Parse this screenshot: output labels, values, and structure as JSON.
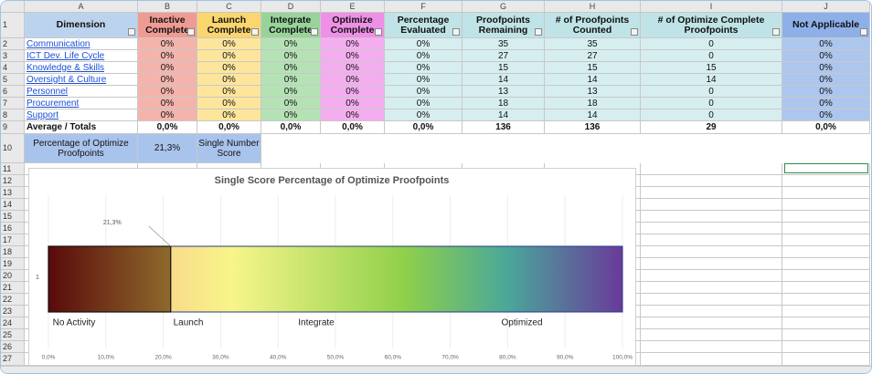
{
  "columns": [
    "A",
    "B",
    "C",
    "D",
    "E",
    "F",
    "G",
    "H",
    "I",
    "J"
  ],
  "row_numbers": [
    1,
    2,
    3,
    4,
    5,
    6,
    7,
    8,
    9,
    10,
    11,
    12,
    13,
    14,
    15,
    16,
    17,
    18,
    19,
    20,
    21,
    22,
    23,
    24,
    25,
    26,
    27
  ],
  "headers": [
    "Dimension",
    "Inactive Complete",
    "Launch Complete",
    "Integrate Complete",
    "Optimize Complete",
    "Percentage Evaluated",
    "Proofpoints Remaining",
    "# of Proofpoints Counted",
    "# of Optimize Complete Proofpoints",
    "Not Applicable"
  ],
  "rows": [
    [
      "Communication",
      "0%",
      "0%",
      "0%",
      "0%",
      "0%",
      35,
      35,
      0,
      "0%"
    ],
    [
      "ICT Dev. Life Cycle",
      "0%",
      "0%",
      "0%",
      "0%",
      "0%",
      27,
      27,
      0,
      "0%"
    ],
    [
      "Knowledge & Skills",
      "0%",
      "0%",
      "0%",
      "0%",
      "0%",
      15,
      15,
      15,
      "0%"
    ],
    [
      "Oversight & Culture",
      "0%",
      "0%",
      "0%",
      "0%",
      "0%",
      14,
      14,
      14,
      "0%"
    ],
    [
      "Personnel",
      "0%",
      "0%",
      "0%",
      "0%",
      "0%",
      13,
      13,
      0,
      "0%"
    ],
    [
      "Procurement",
      "0%",
      "0%",
      "0%",
      "0%",
      "0%",
      18,
      18,
      0,
      "0%"
    ],
    [
      "Support",
      "0%",
      "0%",
      "0%",
      "0%",
      "0%",
      14,
      14,
      0,
      "0%"
    ]
  ],
  "totals": [
    "Average / Totals",
    "0,0%",
    "0,0%",
    "0,0%",
    "0,0%",
    "0,0%",
    136,
    136,
    29,
    "0,0%"
  ],
  "summary": [
    "Percentage of Optimize Proofpoints",
    "21,3%",
    "Single Number Score"
  ],
  "chart": {
    "type": "bar",
    "title": "Single Score Percentage of Optimize Proofpoints",
    "categories": [
      "1"
    ],
    "values": [
      21.3
    ],
    "value_labels": [
      "21,3%"
    ],
    "xlim": [
      0,
      100
    ],
    "xticks": [
      {
        "value": 0,
        "label": "0,0%"
      },
      {
        "value": 10,
        "label": "10,0%"
      },
      {
        "value": 20,
        "label": "20,0%"
      },
      {
        "value": 30,
        "label": "30,0%"
      },
      {
        "value": 40,
        "label": "40,0%"
      },
      {
        "value": 50,
        "label": "50,0%"
      },
      {
        "value": 60,
        "label": "60,0%"
      },
      {
        "value": 70,
        "label": "70,0%"
      },
      {
        "value": 80,
        "label": "80,0%"
      },
      {
        "value": 90,
        "label": "90,0%"
      },
      {
        "value": 100,
        "label": "100,0%"
      }
    ],
    "annotations": [
      "No Activity",
      "Launch",
      "Integrate",
      "Optimized"
    ]
  }
}
